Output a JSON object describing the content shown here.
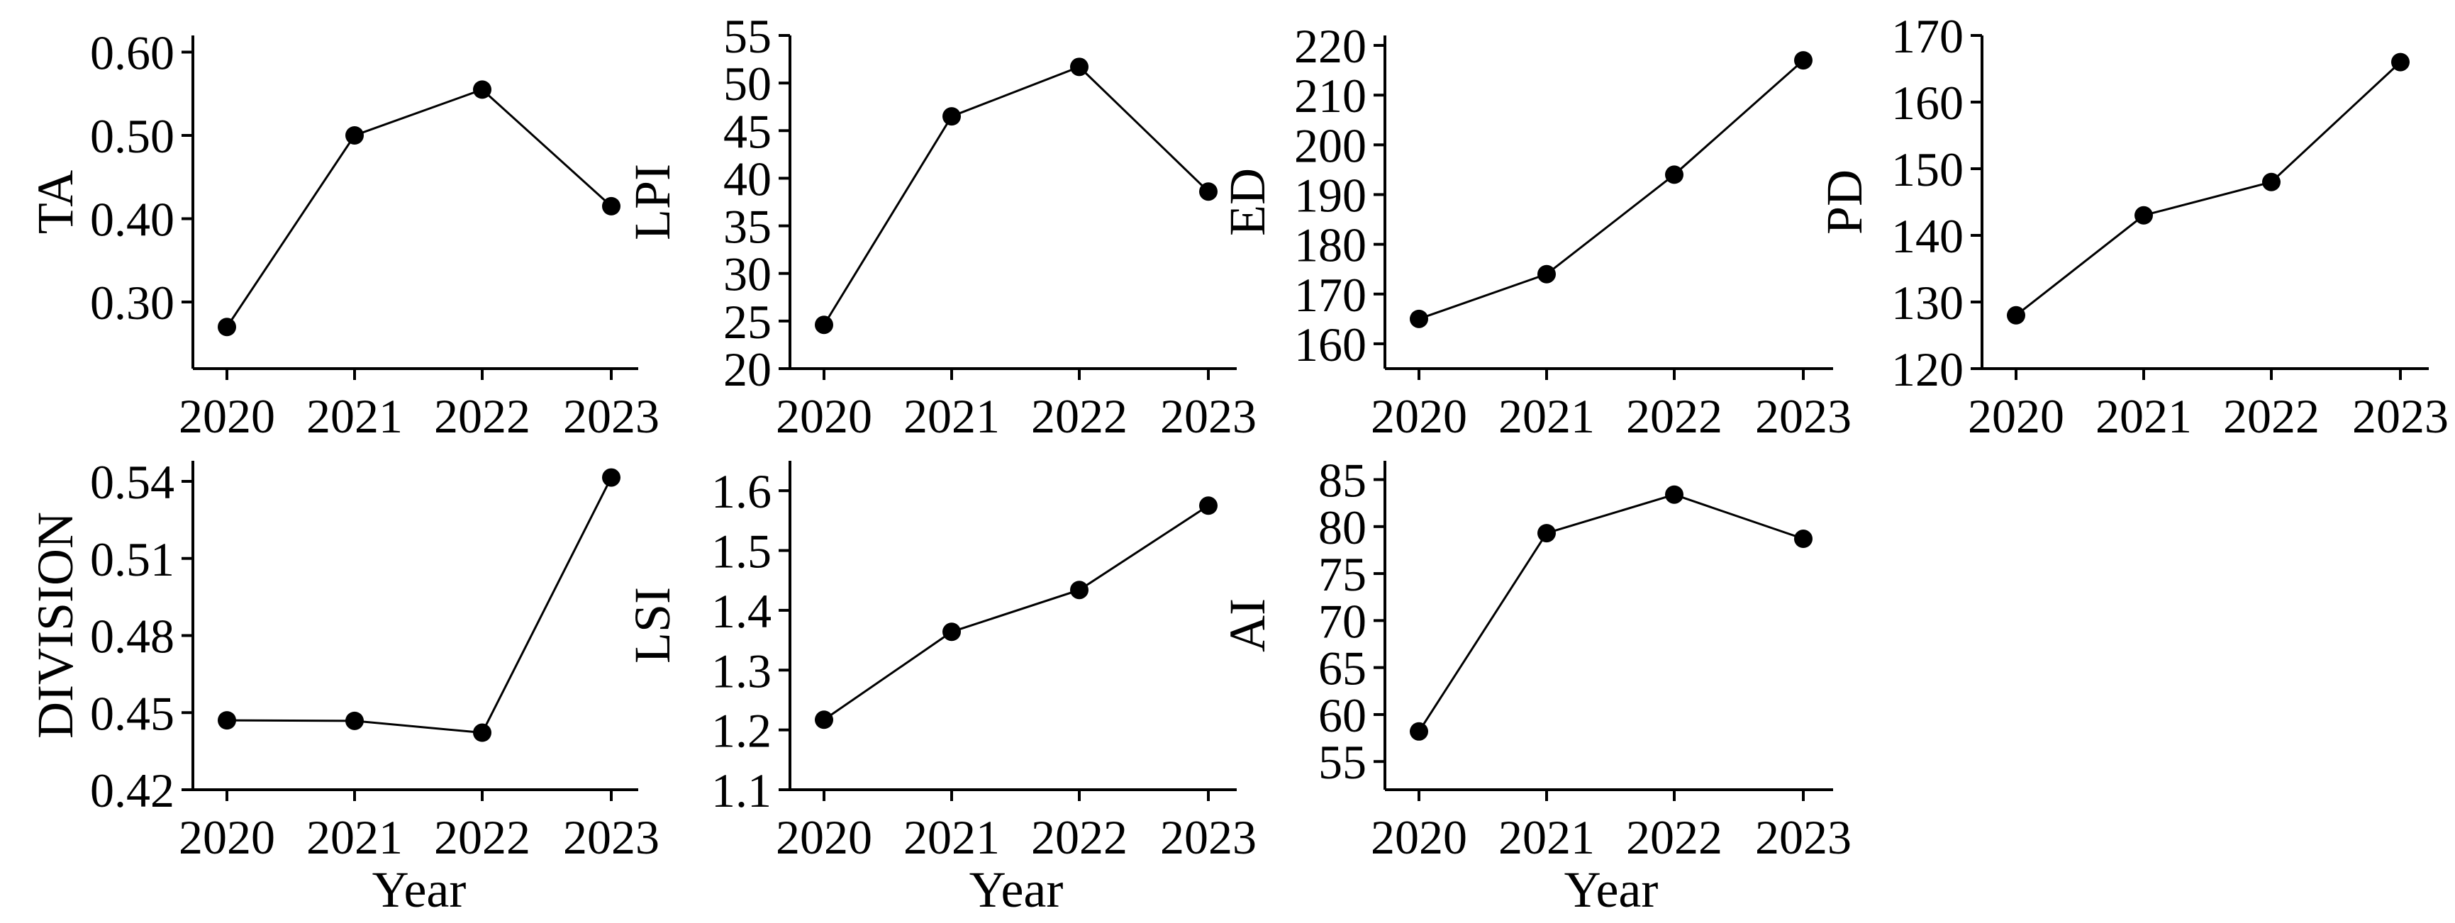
{
  "chart_data": [
    {
      "type": "line",
      "title": "",
      "xlabel": "",
      "ylabel": "TA",
      "x": [
        "2020",
        "2021",
        "2022",
        "2023"
      ],
      "values": [
        0.27,
        0.5,
        0.555,
        0.415
      ],
      "ylim": [
        0.22,
        0.62
      ],
      "yticks": [
        0.3,
        0.4,
        0.5,
        0.6
      ],
      "ytick_decimals": 2,
      "marker": "circle",
      "color": "#000000"
    },
    {
      "type": "line",
      "title": "",
      "xlabel": "",
      "ylabel": "LPI",
      "x": [
        "2020",
        "2021",
        "2022",
        "2023"
      ],
      "values": [
        24.6,
        46.5,
        51.7,
        38.6
      ],
      "ylim": [
        20,
        55
      ],
      "yticks": [
        20,
        25,
        30,
        35,
        40,
        45,
        50,
        55
      ],
      "ytick_decimals": 0,
      "marker": "circle",
      "color": "#000000"
    },
    {
      "type": "line",
      "title": "",
      "xlabel": "",
      "ylabel": "ED",
      "x": [
        "2020",
        "2021",
        "2022",
        "2023"
      ],
      "values": [
        165,
        174,
        194,
        217
      ],
      "ylim": [
        155,
        222
      ],
      "yticks": [
        160,
        170,
        180,
        190,
        200,
        210,
        220
      ],
      "ytick_decimals": 0,
      "marker": "circle",
      "color": "#000000"
    },
    {
      "type": "line",
      "title": "",
      "xlabel": "",
      "ylabel": "PD",
      "x": [
        "2020",
        "2021",
        "2022",
        "2023"
      ],
      "values": [
        128,
        143,
        148,
        166
      ],
      "ylim": [
        120,
        170
      ],
      "yticks": [
        120,
        130,
        140,
        150,
        160,
        170
      ],
      "ytick_decimals": 0,
      "marker": "circle",
      "color": "#000000"
    },
    {
      "type": "line",
      "title": "",
      "xlabel": "Year",
      "ylabel": "DIVISION",
      "x": [
        "2020",
        "2021",
        "2022",
        "2023"
      ],
      "values": [
        0.447,
        0.4468,
        0.4422,
        0.5415
      ],
      "ylim": [
        0.42,
        0.548
      ],
      "yticks": [
        0.42,
        0.45,
        0.48,
        0.51,
        0.54
      ],
      "ytick_decimals": 2,
      "marker": "circle",
      "color": "#000000"
    },
    {
      "type": "line",
      "title": "",
      "xlabel": "Year",
      "ylabel": "LSI",
      "x": [
        "2020",
        "2021",
        "2022",
        "2023"
      ],
      "values": [
        1.217,
        1.364,
        1.434,
        1.575
      ],
      "ylim": [
        1.1,
        1.65
      ],
      "yticks": [
        1.1,
        1.2,
        1.3,
        1.4,
        1.5,
        1.6
      ],
      "ytick_decimals": 1,
      "marker": "circle",
      "color": "#000000"
    },
    {
      "type": "line",
      "title": "",
      "xlabel": "Year",
      "ylabel": "AI",
      "x": [
        "2020",
        "2021",
        "2022",
        "2023"
      ],
      "values": [
        58.2,
        79.3,
        83.4,
        78.7
      ],
      "ylim": [
        52,
        87
      ],
      "yticks": [
        55,
        60,
        65,
        70,
        75,
        80,
        85
      ],
      "ytick_decimals": 0,
      "marker": "circle",
      "color": "#000000"
    }
  ]
}
